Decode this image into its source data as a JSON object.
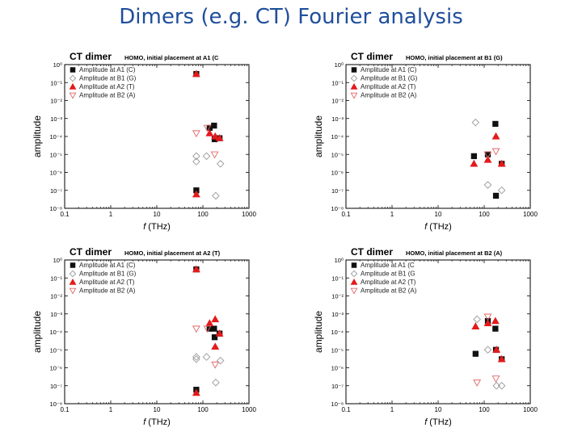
{
  "slide": {
    "title": "Dimers (e.g. CT)   Fourier analysis"
  },
  "colors": {
    "black": "#111111",
    "red": "#e31a1c",
    "open": "#999999",
    "open_red": "#e06666"
  },
  "chart_data": [
    {
      "type": "scatter",
      "panel_label": "CT dimer",
      "title": "HOMO, initial placement at A1 (C",
      "xlabel_italic": "f",
      "xlabel_rest": " (THz)",
      "ylabel": "amplitude",
      "xscale": "log",
      "yscale": "log",
      "xlim": [
        0.1,
        1000
      ],
      "ylim": [
        1e-08,
        1
      ],
      "x_ticks": [
        "0.1",
        "1",
        "10",
        "100",
        "1000"
      ],
      "y_exponents": [
        0,
        -1,
        -2,
        -3,
        -4,
        -5,
        -6,
        -7,
        -8
      ],
      "legend_position": "top-left",
      "legend": [
        "Amplitude at A1 (C)",
        "Amplitude at B1 (G)",
        "Amplitude at A2 (T)",
        "Amplitude at B2 (A)"
      ],
      "series": [
        {
          "name": "Amplitude at A1 (C)",
          "marker": "square",
          "points": [
            [
              72,
              0.3
            ],
            [
              72,
              1e-07
            ],
            [
              140,
              0.0003
            ],
            [
              175,
              0.0004
            ],
            [
              180,
              7e-05
            ],
            [
              230,
              8e-05
            ]
          ]
        },
        {
          "name": "Amplitude at B1 (G)",
          "marker": "diamond",
          "points": [
            [
              72,
              8e-06
            ],
            [
              72,
              4e-06
            ],
            [
              120,
              8e-06
            ],
            [
              190,
              5e-08
            ],
            [
              240,
              3e-06
            ]
          ]
        },
        {
          "name": "Amplitude at A2 (T)",
          "marker": "triangle-up",
          "points": [
            [
              72,
              0.3
            ],
            [
              72,
              6e-08
            ],
            [
              140,
              0.00015
            ],
            [
              185,
              0.0001
            ],
            [
              230,
              8e-05
            ]
          ]
        },
        {
          "name": "Amplitude at B2 (A)",
          "marker": "triangle-down",
          "points": [
            [
              72,
              0.00015
            ],
            [
              125,
              0.0003
            ],
            [
              180,
              1e-05
            ]
          ]
        }
      ]
    },
    {
      "type": "scatter",
      "panel_label": "CT dimer",
      "title": "HOMO, initial placement at B1 (G)",
      "xlabel_italic": "f",
      "xlabel_rest": " (THz)",
      "ylabel": "amplitude",
      "xscale": "log",
      "yscale": "log",
      "xlim": [
        0.1,
        1000
      ],
      "ylim": [
        1e-08,
        1
      ],
      "x_ticks": [
        "0.1",
        "1",
        "10",
        "100",
        "1000"
      ],
      "y_exponents": [
        0,
        -1,
        -2,
        -3,
        -4,
        -5,
        -6,
        -7,
        -8
      ],
      "legend_position": "top-left",
      "legend": [
        "Amplitude at A1 (C)",
        "Amplitude at B1 (G)",
        "Amplitude at A2 (T)",
        "Amplitude at B2 (A)"
      ],
      "series": [
        {
          "name": "Amplitude at A1 (C)",
          "marker": "square",
          "points": [
            [
              60,
              8e-06
            ],
            [
              120,
              1e-05
            ],
            [
              175,
              0.0005
            ],
            [
              180,
              5e-08
            ],
            [
              240,
              3e-06
            ]
          ]
        },
        {
          "name": "Amplitude at B1 (G)",
          "marker": "diamond",
          "points": [
            [
              65,
              0.0006
            ],
            [
              120,
              2e-07
            ],
            [
              240,
              1e-07
            ]
          ]
        },
        {
          "name": "Amplitude at A2 (T)",
          "marker": "triangle-up",
          "points": [
            [
              60,
              3e-06
            ],
            [
              120,
              5e-06
            ],
            [
              180,
              0.0001
            ],
            [
              240,
              3e-06
            ]
          ]
        },
        {
          "name": "Amplitude at B2 (A)",
          "marker": "triangle-down",
          "points": [
            [
              120,
              1e-05
            ],
            [
              180,
              1.5e-05
            ]
          ]
        }
      ]
    },
    {
      "type": "scatter",
      "panel_label": "CT dimer",
      "title": "HOMO, initial placement at A2 (T)",
      "xlabel_italic": "f",
      "xlabel_rest": " (THz)",
      "ylabel": "amplitude",
      "xscale": "log",
      "yscale": "log",
      "xlim": [
        0.1,
        1000
      ],
      "ylim": [
        1e-08,
        1
      ],
      "x_ticks": [
        "0.1",
        "1",
        "10",
        "100",
        "1000"
      ],
      "y_exponents": [
        0,
        -1,
        -2,
        -3,
        -4,
        -5,
        -6,
        -7,
        -8
      ],
      "legend_position": "top-left",
      "legend": [
        "Amplitude at A1 (C)",
        "Amplitude at B1 (G)",
        "Amplitude at A2 (T)",
        "Amplitude at B2 (A)"
      ],
      "series": [
        {
          "name": "Amplitude at A1 (C)",
          "marker": "square",
          "points": [
            [
              72,
              0.3
            ],
            [
              72,
              6e-08
            ],
            [
              140,
              0.00015
            ],
            [
              175,
              0.00015
            ],
            [
              180,
              5e-05
            ],
            [
              230,
              8e-05
            ]
          ]
        },
        {
          "name": "Amplitude at B1 (G)",
          "marker": "diamond",
          "points": [
            [
              72,
              4e-06
            ],
            [
              72,
              3e-06
            ],
            [
              120,
              4e-06
            ],
            [
              190,
              1.5e-07
            ],
            [
              240,
              2.5e-06
            ]
          ]
        },
        {
          "name": "Amplitude at A2 (T)",
          "marker": "triangle-up",
          "points": [
            [
              72,
              0.3
            ],
            [
              72,
              4e-08
            ],
            [
              140,
              0.0003
            ],
            [
              185,
              0.0005
            ],
            [
              185,
              1.5e-05
            ],
            [
              230,
              8e-05
            ]
          ]
        },
        {
          "name": "Amplitude at B2 (A)",
          "marker": "triangle-down",
          "points": [
            [
              72,
              0.00015
            ],
            [
              125,
              0.00015
            ],
            [
              185,
              1.5e-06
            ]
          ]
        }
      ]
    },
    {
      "type": "scatter",
      "panel_label": "CT dimer",
      "title": "HOMO, initial placement at B2 (A)",
      "xlabel_italic": "f",
      "xlabel_rest": " (THz)",
      "ylabel": "amplitude",
      "xscale": "log",
      "yscale": "log",
      "xlim": [
        0.1,
        1000
      ],
      "ylim": [
        1e-08,
        1
      ],
      "x_ticks": [
        "0.1",
        "1",
        "10",
        "100",
        "1000"
      ],
      "y_exponents": [
        0,
        -1,
        -2,
        -3,
        -4,
        -5,
        -6,
        -7,
        -8
      ],
      "legend_position": "top-left",
      "legend": [
        "Amplitude at A1 (C",
        "Amplitude at B1 (G",
        "Amplitude at A2 (T)",
        "Amplitude at B2 (A)"
      ],
      "series": [
        {
          "name": "Amplitude at A1 (C",
          "marker": "square",
          "points": [
            [
              65,
              6e-06
            ],
            [
              120,
              0.0004
            ],
            [
              175,
              0.00015
            ],
            [
              180,
              1e-05
            ],
            [
              240,
              3e-06
            ]
          ]
        },
        {
          "name": "Amplitude at B1 (G",
          "marker": "diamond",
          "points": [
            [
              70,
              0.0005
            ],
            [
              120,
              1e-05
            ],
            [
              185,
              1e-07
            ],
            [
              240,
              1e-07
            ]
          ]
        },
        {
          "name": "Amplitude at A2 (T)",
          "marker": "triangle-up",
          "points": [
            [
              65,
              0.0002
            ],
            [
              120,
              0.0003
            ],
            [
              175,
              0.0004
            ],
            [
              185,
              1e-05
            ],
            [
              240,
              3e-06
            ]
          ]
        },
        {
          "name": "Amplitude at B2 (A)",
          "marker": "triangle-down",
          "points": [
            [
              70,
              1.5e-07
            ],
            [
              120,
              0.0007
            ],
            [
              180,
              2.5e-07
            ]
          ]
        }
      ]
    }
  ]
}
